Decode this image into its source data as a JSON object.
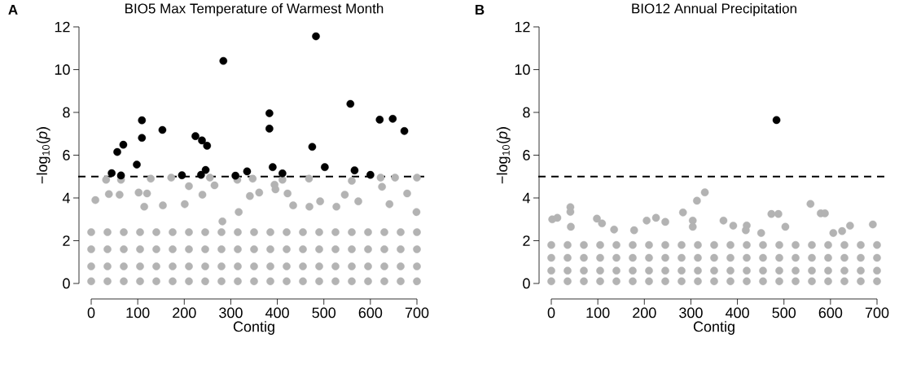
{
  "chart_data": [
    {
      "type": "scatter",
      "title": "BIO5 Max Temperature of Warmest Month",
      "xlabel": "Contig",
      "ylabel": "−log$_{10}$(*p*)",
      "annotations": [
        "**A**"
      ],
      "xlim": [
        0,
        700
      ],
      "ylim": [
        0,
        12
      ],
      "xticks": [
        0,
        100,
        200,
        300,
        400,
        500,
        600,
        700
      ],
      "yticks": [
        0,
        2,
        4,
        6,
        8,
        10,
        12
      ],
      "marker": "circle",
      "ref_lines": [
        {
          "axis": "y",
          "value": 5,
          "color": "#000000",
          "line_style": "dashed"
        }
      ],
      "series": [
        {
          "color": "#b3b3b3",
          "x": [
            32,
            64,
            128,
            172,
            255,
            314,
            347,
            411,
            468,
            560,
            622,
            653,
            700,
            210,
            265,
            394,
            625,
            38,
            61,
            102,
            120,
            239,
            361,
            341,
            396,
            422,
            545,
            679,
            641,
            9,
            114,
            154,
            201,
            317,
            434,
            492,
            574,
            699,
            469,
            527,
            282
          ],
          "values": [
            4.85,
            4.85,
            4.9,
            4.95,
            4.95,
            4.85,
            4.9,
            4.85,
            4.9,
            4.8,
            4.95,
            4.95,
            4.95,
            4.55,
            4.59,
            4.62,
            4.52,
            4.18,
            4.15,
            4.25,
            4.21,
            4.15,
            4.25,
            4.09,
            4.4,
            4.21,
            4.15,
            4.21,
            3.71,
            3.9,
            3.59,
            3.65,
            3.71,
            3.34,
            3.65,
            3.84,
            3.84,
            3.34,
            3.59,
            3.59,
            2.9
          ]
        },
        {
          "color": "#b3b3b3",
          "x": [
            0,
            35,
            70,
            105,
            140,
            175,
            210,
            245,
            280,
            315,
            350,
            385,
            420,
            455,
            490,
            525,
            560,
            595,
            630,
            665,
            700,
            0,
            35,
            70,
            105,
            140,
            175,
            210,
            245,
            280,
            315,
            350,
            385,
            420,
            455,
            490,
            525,
            560,
            595,
            630,
            665,
            700,
            0,
            35,
            70,
            105,
            140,
            175,
            210,
            245,
            280,
            315,
            350,
            385,
            420,
            455,
            490,
            525,
            560,
            595,
            630,
            665,
            700,
            0,
            35,
            70,
            105,
            140,
            175,
            210,
            245,
            280,
            315,
            350,
            385,
            420,
            455,
            490,
            525,
            560,
            595,
            630,
            665,
            700
          ],
          "values": [
            2.4,
            2.4,
            2.4,
            2.4,
            2.4,
            2.4,
            2.4,
            2.4,
            2.4,
            2.4,
            2.4,
            2.4,
            2.4,
            2.4,
            2.4,
            2.4,
            2.4,
            2.4,
            2.4,
            2.4,
            2.4,
            1.6,
            1.6,
            1.6,
            1.6,
            1.6,
            1.6,
            1.6,
            1.6,
            1.6,
            1.6,
            1.6,
            1.6,
            1.6,
            1.6,
            1.6,
            1.6,
            1.6,
            1.6,
            1.6,
            1.6,
            1.6,
            0.8,
            0.8,
            0.8,
            0.8,
            0.8,
            0.8,
            0.8,
            0.8,
            0.8,
            0.8,
            0.8,
            0.8,
            0.8,
            0.8,
            0.8,
            0.8,
            0.8,
            0.8,
            0.8,
            0.8,
            0.8,
            0.1,
            0.1,
            0.1,
            0.1,
            0.1,
            0.1,
            0.1,
            0.1,
            0.1,
            0.1,
            0.1,
            0.1,
            0.1,
            0.1,
            0.1,
            0.1,
            0.1,
            0.1,
            0.1,
            0.1,
            0.1
          ]
        },
        {
          "color": "#000000",
          "x": [
            44,
            56,
            69,
            64,
            98,
            109,
            109,
            153,
            195,
            224,
            238,
            249,
            246,
            236,
            284,
            310,
            335,
            383,
            383,
            390,
            411,
            475,
            483,
            502,
            557,
            566,
            600,
            620,
            648,
            673
          ],
          "values": [
            5.16,
            6.15,
            6.49,
            5.05,
            5.56,
            6.81,
            7.63,
            7.18,
            5.06,
            6.89,
            6.69,
            6.44,
            5.31,
            5.08,
            10.41,
            5.04,
            5.24,
            7.96,
            7.24,
            5.44,
            5.15,
            6.39,
            11.56,
            5.44,
            8.4,
            5.29,
            5.08,
            7.66,
            7.7,
            7.13
          ]
        }
      ]
    },
    {
      "type": "scatter",
      "title": "BIO12 Annual Precipitation",
      "xlabel": "Contig",
      "ylabel": "−log$_{10}$(*p*)",
      "annotations": [
        "**B**"
      ],
      "xlim": [
        0,
        700
      ],
      "ylim": [
        0,
        12
      ],
      "xticks": [
        0,
        100,
        200,
        300,
        400,
        500,
        600,
        700
      ],
      "yticks": [
        0,
        2,
        4,
        6,
        8,
        10,
        12
      ],
      "marker": "circle",
      "ref_lines": [
        {
          "axis": "y",
          "value": 5,
          "color": "#000000",
          "line_style": "dashed"
        }
      ],
      "series": [
        {
          "color": "#b3b3b3",
          "x": [
            330,
            313,
            557,
            41,
            41,
            283,
            473,
            488,
            579,
            588,
            2,
            13,
            98,
            109,
            205,
            225,
            245,
            304,
            304,
            370,
            391,
            420,
            418,
            503,
            642,
            691,
            42,
            135,
            178,
            451,
            606,
            625
          ],
          "values": [
            4.26,
            3.87,
            3.72,
            3.57,
            3.35,
            3.32,
            3.25,
            3.25,
            3.28,
            3.28,
            3.0,
            3.07,
            3.03,
            2.81,
            2.94,
            3.07,
            2.88,
            2.94,
            2.65,
            2.94,
            2.7,
            2.71,
            2.49,
            2.65,
            2.7,
            2.76,
            2.65,
            2.52,
            2.49,
            2.36,
            2.36,
            2.45
          ]
        },
        {
          "color": "#b3b3b3",
          "x": [
            0,
            35,
            70,
            105,
            140,
            175,
            210,
            245,
            280,
            315,
            350,
            385,
            420,
            455,
            490,
            525,
            560,
            595,
            630,
            665,
            700,
            0,
            35,
            70,
            105,
            140,
            175,
            210,
            245,
            280,
            315,
            350,
            385,
            420,
            455,
            490,
            525,
            560,
            595,
            630,
            665,
            700,
            0,
            35,
            70,
            105,
            140,
            175,
            210,
            245,
            280,
            315,
            350,
            385,
            420,
            455,
            490,
            525,
            560,
            595,
            630,
            665,
            700,
            0,
            35,
            70,
            105,
            140,
            175,
            210,
            245,
            280,
            315,
            350,
            385,
            420,
            455,
            490,
            525,
            560,
            595,
            630,
            665,
            700
          ],
          "values": [
            1.8,
            1.8,
            1.8,
            1.8,
            1.8,
            1.8,
            1.8,
            1.8,
            1.8,
            1.8,
            1.8,
            1.8,
            1.8,
            1.8,
            1.8,
            1.8,
            1.8,
            1.8,
            1.8,
            1.8,
            1.8,
            1.2,
            1.2,
            1.2,
            1.2,
            1.2,
            1.2,
            1.2,
            1.2,
            1.2,
            1.2,
            1.2,
            1.2,
            1.2,
            1.2,
            1.2,
            1.2,
            1.2,
            1.2,
            1.2,
            1.2,
            1.2,
            0.6,
            0.6,
            0.6,
            0.6,
            0.6,
            0.6,
            0.6,
            0.6,
            0.6,
            0.6,
            0.6,
            0.6,
            0.6,
            0.6,
            0.6,
            0.6,
            0.6,
            0.6,
            0.6,
            0.6,
            0.6,
            0.1,
            0.1,
            0.1,
            0.1,
            0.1,
            0.1,
            0.1,
            0.1,
            0.1,
            0.1,
            0.1,
            0.1,
            0.1,
            0.1,
            0.1,
            0.1,
            0.1,
            0.1,
            0.1,
            0.1,
            0.1
          ]
        },
        {
          "color": "#000000",
          "x": [
            484
          ],
          "values": [
            7.64
          ]
        }
      ]
    }
  ]
}
